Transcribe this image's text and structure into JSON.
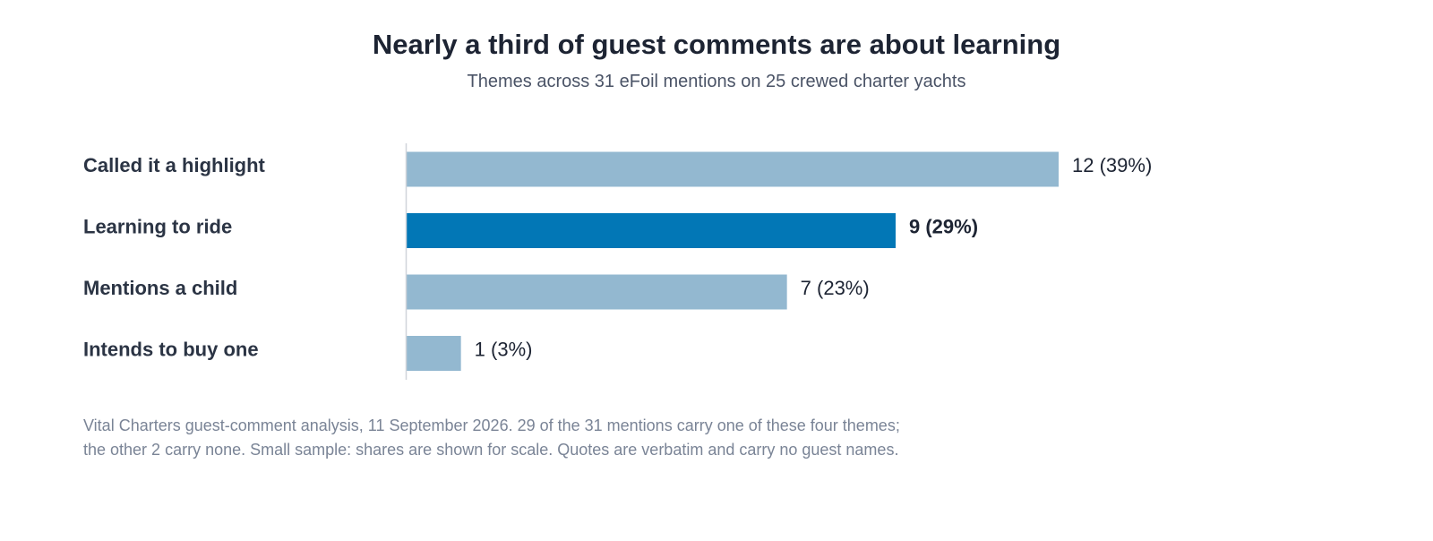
{
  "chart_data": {
    "type": "bar",
    "orientation": "horizontal",
    "title": "Nearly a third of guest comments are about learning",
    "subtitle": "Themes across 31 eFoil mentions on 25 crewed charter yachts",
    "categories": [
      "Called it a highlight",
      "Learning to ride",
      "Mentions a child",
      "Intends to buy one"
    ],
    "values": [
      12,
      9,
      7,
      1
    ],
    "data_labels": [
      "12 (39%)",
      "9 (29%)",
      "7 (23%)",
      "1 (3%)"
    ],
    "highlight_index": 1,
    "xlim": [
      0,
      12
    ],
    "grid": false,
    "legend": "none",
    "colors": {
      "bar": "#93b8d0",
      "highlight": "#0277b6",
      "axis": "#d0d4da"
    }
  },
  "footnote": {
    "line1": "Vital Charters guest-comment analysis, 11 September 2026. 29 of the 31 mentions carry one of these four themes;",
    "line2": "the other 2 carry none. Small sample: shares are shown for scale. Quotes are verbatim and carry no guest names."
  }
}
